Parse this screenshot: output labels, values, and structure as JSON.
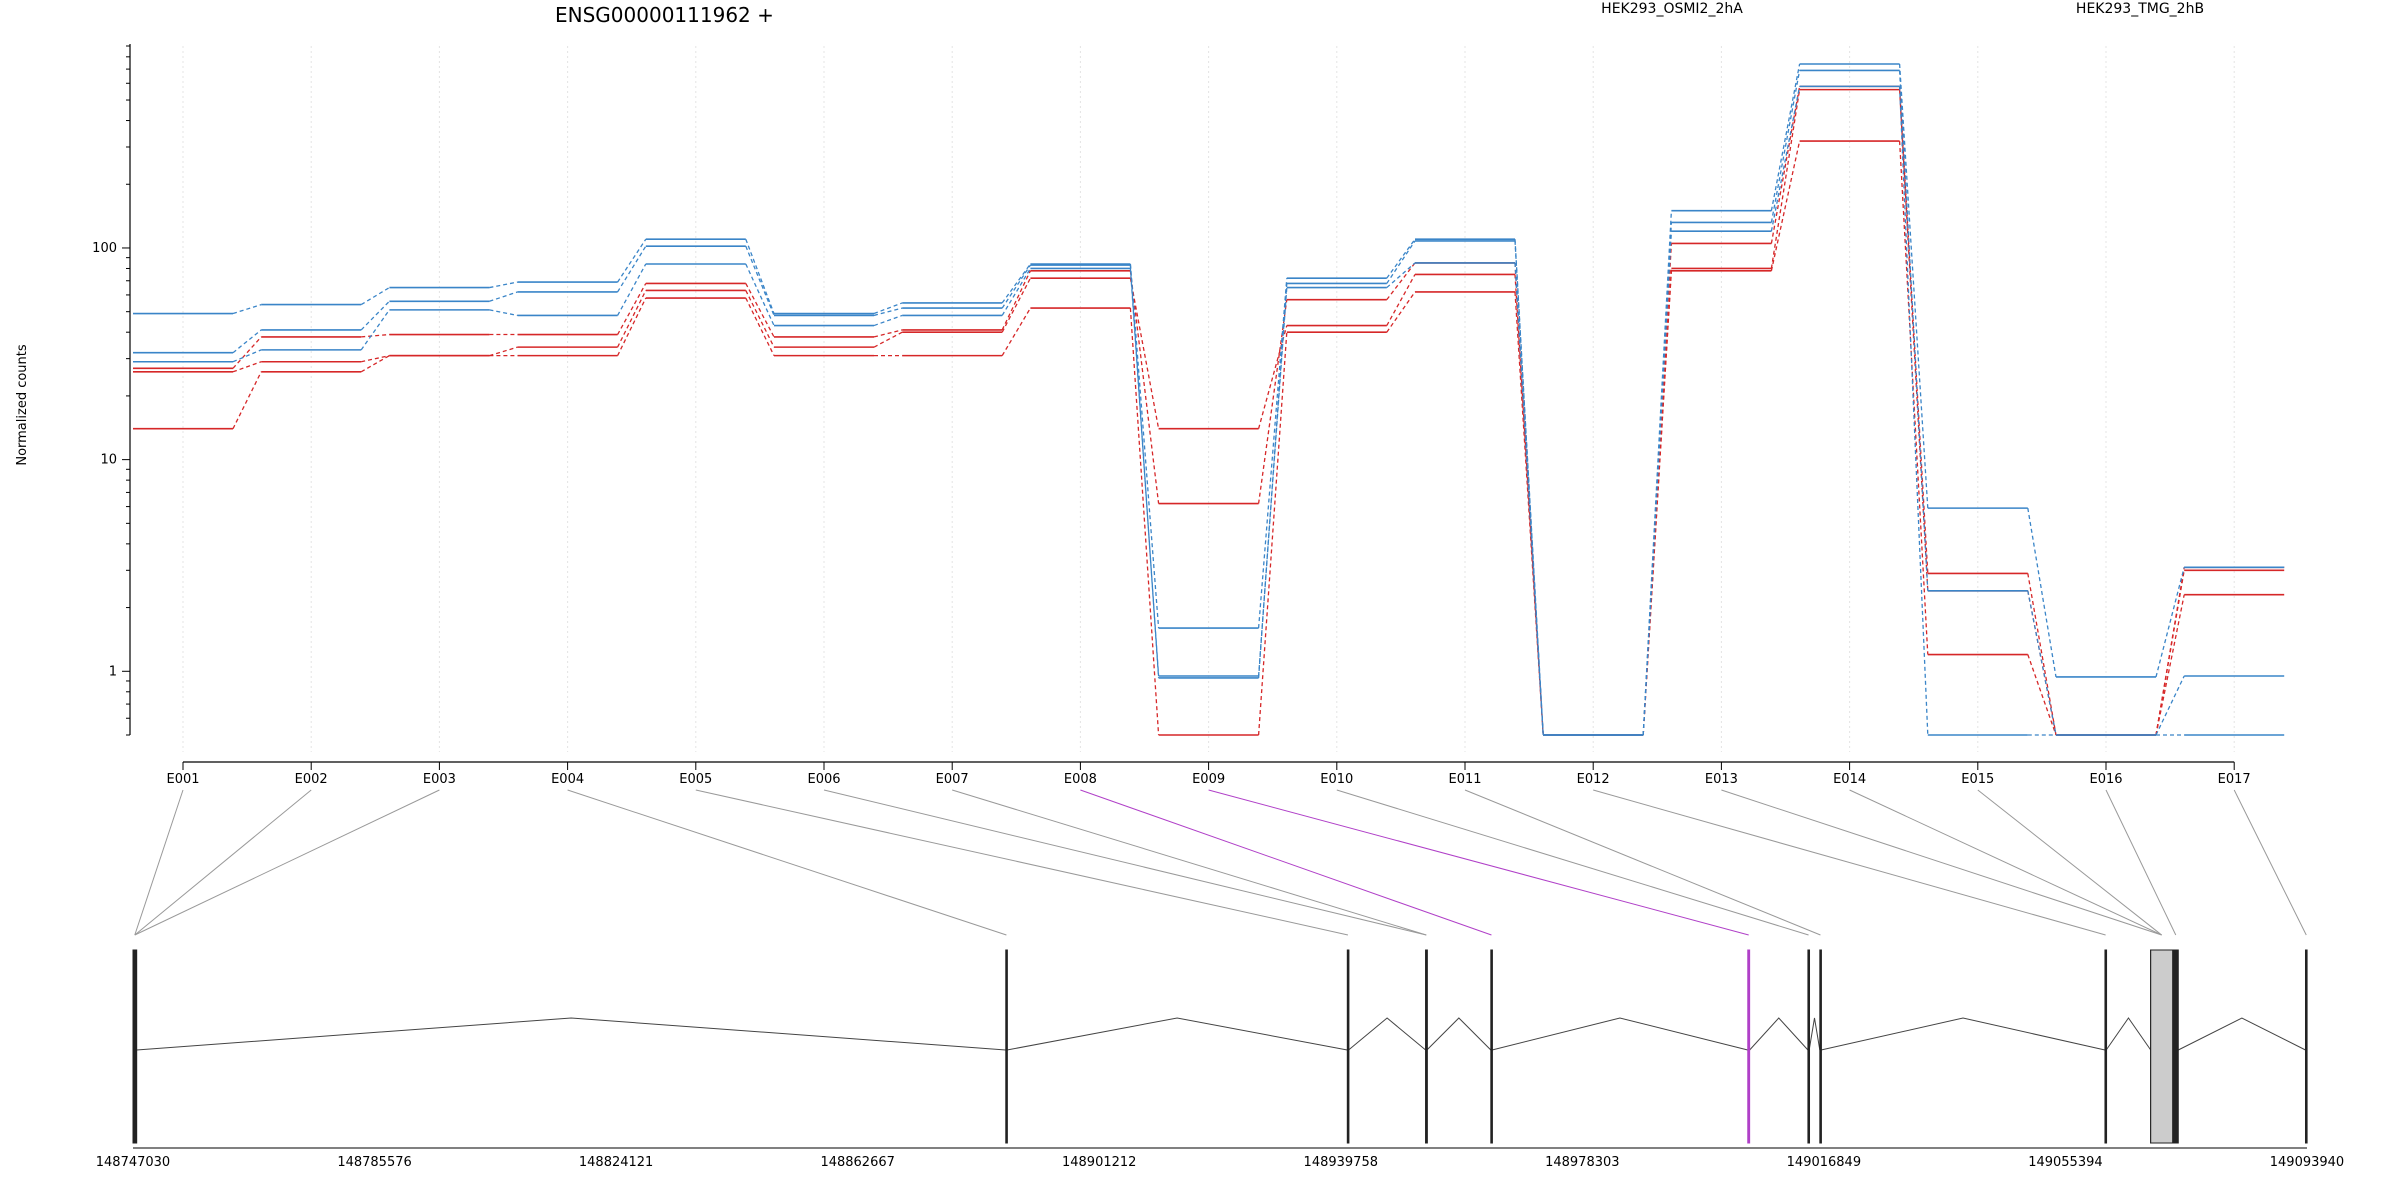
{
  "chart_data": {
    "type": "line",
    "title": "ENSG00000111962 +",
    "ylabel": "Normalized counts",
    "yscale": "log",
    "ylim": [
      0.5,
      900
    ],
    "yticks": [
      1,
      10,
      100
    ],
    "ytick_labels": [
      "1",
      "10",
      "100"
    ],
    "grid": "vertical-dotted",
    "legend_position": "top",
    "colors": {
      "HEK293_OSMI2_2hA": "#d62728",
      "HEK293_TMG_2hB": "#3a85c8",
      "highlight": "#b040c8"
    },
    "groups": [
      {
        "name": "HEK293_OSMI2_2hA",
        "color": "#d62728"
      },
      {
        "name": "HEK293_TMG_2hB",
        "color": "#3a85c8"
      }
    ],
    "categories": [
      "E001",
      "E002",
      "E003",
      "E004",
      "E005",
      "E006",
      "E007",
      "E008",
      "E009",
      "E010",
      "E011",
      "E012",
      "E013",
      "E014",
      "E015",
      "E016",
      "E017"
    ],
    "series": [
      {
        "group": "HEK293_OSMI2_2hA",
        "values": [
          14,
          26,
          31,
          31,
          58,
          31,
          31,
          52,
          0.5,
          40,
          62,
          0.5,
          78,
          320,
          1.2,
          0.5,
          2.3
        ]
      },
      {
        "group": "HEK293_OSMI2_2hA",
        "values": [
          26,
          29,
          31,
          34,
          63,
          34,
          40,
          72,
          14,
          43,
          75,
          0.5,
          80,
          560,
          2.4,
          0.5,
          3.0
        ]
      },
      {
        "group": "HEK293_OSMI2_2hA",
        "values": [
          27,
          38,
          39,
          39,
          68,
          38,
          41,
          78,
          6.2,
          57,
          85,
          0.5,
          105,
          580,
          2.9,
          0.5,
          3.1
        ]
      },
      {
        "group": "HEK293_TMG_2hB",
        "values": [
          29,
          33,
          51,
          48,
          84,
          43,
          48,
          80,
          0.95,
          65,
          85,
          0.5,
          120,
          580,
          0.5,
          0.5,
          0.5
        ]
      },
      {
        "group": "HEK293_TMG_2hB",
        "values": [
          32,
          41,
          56,
          62,
          102,
          48,
          52,
          83,
          0.93,
          68,
          108,
          0.5,
          132,
          690,
          2.4,
          0.5,
          0.95
        ]
      },
      {
        "group": "HEK293_TMG_2hB",
        "values": [
          49,
          54,
          65,
          69,
          110,
          49,
          55,
          84,
          1.6,
          72,
          110,
          0.5,
          150,
          740,
          5.9,
          0.94,
          3.1
        ]
      }
    ],
    "highlight_exons": [
      "E008",
      "E009"
    ],
    "genomic_axis": {
      "start": 148747030,
      "end": 149093940,
      "tick_labels": [
        "148747030",
        "148785576",
        "148824121",
        "148862667",
        "148901212",
        "148939758",
        "148978303",
        "149016849",
        "149055394",
        "149093940"
      ],
      "exons": [
        {
          "id": "E001",
          "start": 148747030,
          "end": 148747600
        },
        {
          "id": "E002",
          "start": 148747030,
          "end": 148747600
        },
        {
          "id": "E003",
          "start": 148747030,
          "end": 148747600
        },
        {
          "id": "E004",
          "start": 148886300,
          "end": 148886500
        },
        {
          "id": "E005",
          "start": 148940800,
          "end": 148941000
        },
        {
          "id": "E006",
          "start": 148953300,
          "end": 148953500
        },
        {
          "id": "E007",
          "start": 148953300,
          "end": 148953500
        },
        {
          "id": "E008",
          "start": 148963700,
          "end": 148963900
        },
        {
          "id": "E009",
          "start": 149004700,
          "end": 149005000
        },
        {
          "id": "E010",
          "start": 149014300,
          "end": 149014500
        },
        {
          "id": "E011",
          "start": 149016200,
          "end": 149016400
        },
        {
          "id": "E012",
          "start": 149061700,
          "end": 149061900
        },
        {
          "id": "E013",
          "start": 149069000,
          "end": 149072500
        },
        {
          "id": "E014",
          "start": 149069000,
          "end": 149072500
        },
        {
          "id": "E015",
          "start": 149069000,
          "end": 149072500
        },
        {
          "id": "E016",
          "start": 149072600,
          "end": 149073400
        },
        {
          "id": "E017",
          "start": 149093700,
          "end": 149093940
        }
      ]
    }
  }
}
